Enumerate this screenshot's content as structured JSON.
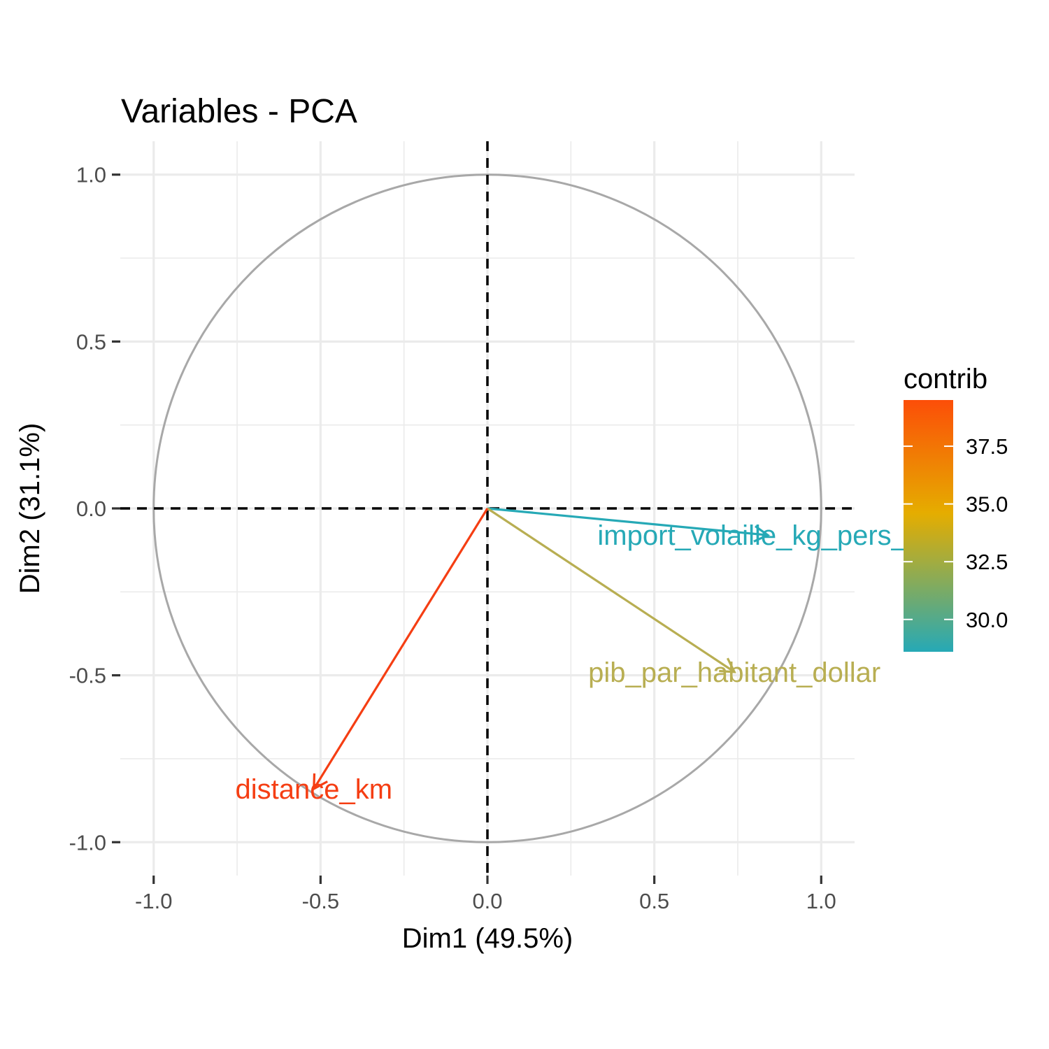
{
  "chart_data": {
    "type": "scatter",
    "title": "Variables - PCA",
    "xlabel": "Dim1 (49.5%)",
    "ylabel": "Dim2 (31.1%)",
    "xlim": [
      -1.1,
      1.1
    ],
    "ylim": [
      -1.1,
      1.1
    ],
    "x_ticks": [
      -1.0,
      -0.5,
      0.0,
      0.5,
      1.0
    ],
    "y_ticks": [
      -1.0,
      -0.5,
      0.0,
      0.5,
      1.0
    ],
    "x_tick_labels": [
      "-1.0",
      "-0.5",
      "0.0",
      "0.5",
      "1.0"
    ],
    "y_tick_labels": [
      "-1.0",
      "-0.5",
      "0.0",
      "0.5",
      "1.0"
    ],
    "grid": true,
    "correlation_circle": true,
    "reference_lines": [
      0.0
    ],
    "variables": [
      {
        "name": "import_volaille_kg_pers_an",
        "x": 0.84,
        "y": -0.08,
        "contrib": 28.8,
        "color": "#26A9B6"
      },
      {
        "name": "pib_par_habitant_dollar",
        "x": 0.74,
        "y": -0.49,
        "contrib": 31.9,
        "color": "#B8AE52"
      },
      {
        "name": "distance_km",
        "x": -0.52,
        "y": -0.84,
        "contrib": 39.3,
        "color": "#F53E13"
      }
    ],
    "legend": {
      "title": "contrib",
      "position": "right",
      "min": 28.6,
      "max": 39.5,
      "ticks": [
        30.0,
        32.5,
        35.0,
        37.5
      ],
      "tick_labels": [
        "30.0",
        "32.5",
        "35.0",
        "37.5"
      ],
      "gradient_colors": [
        "#26A9B6",
        "#E5AD00",
        "#FC4E08"
      ]
    }
  }
}
